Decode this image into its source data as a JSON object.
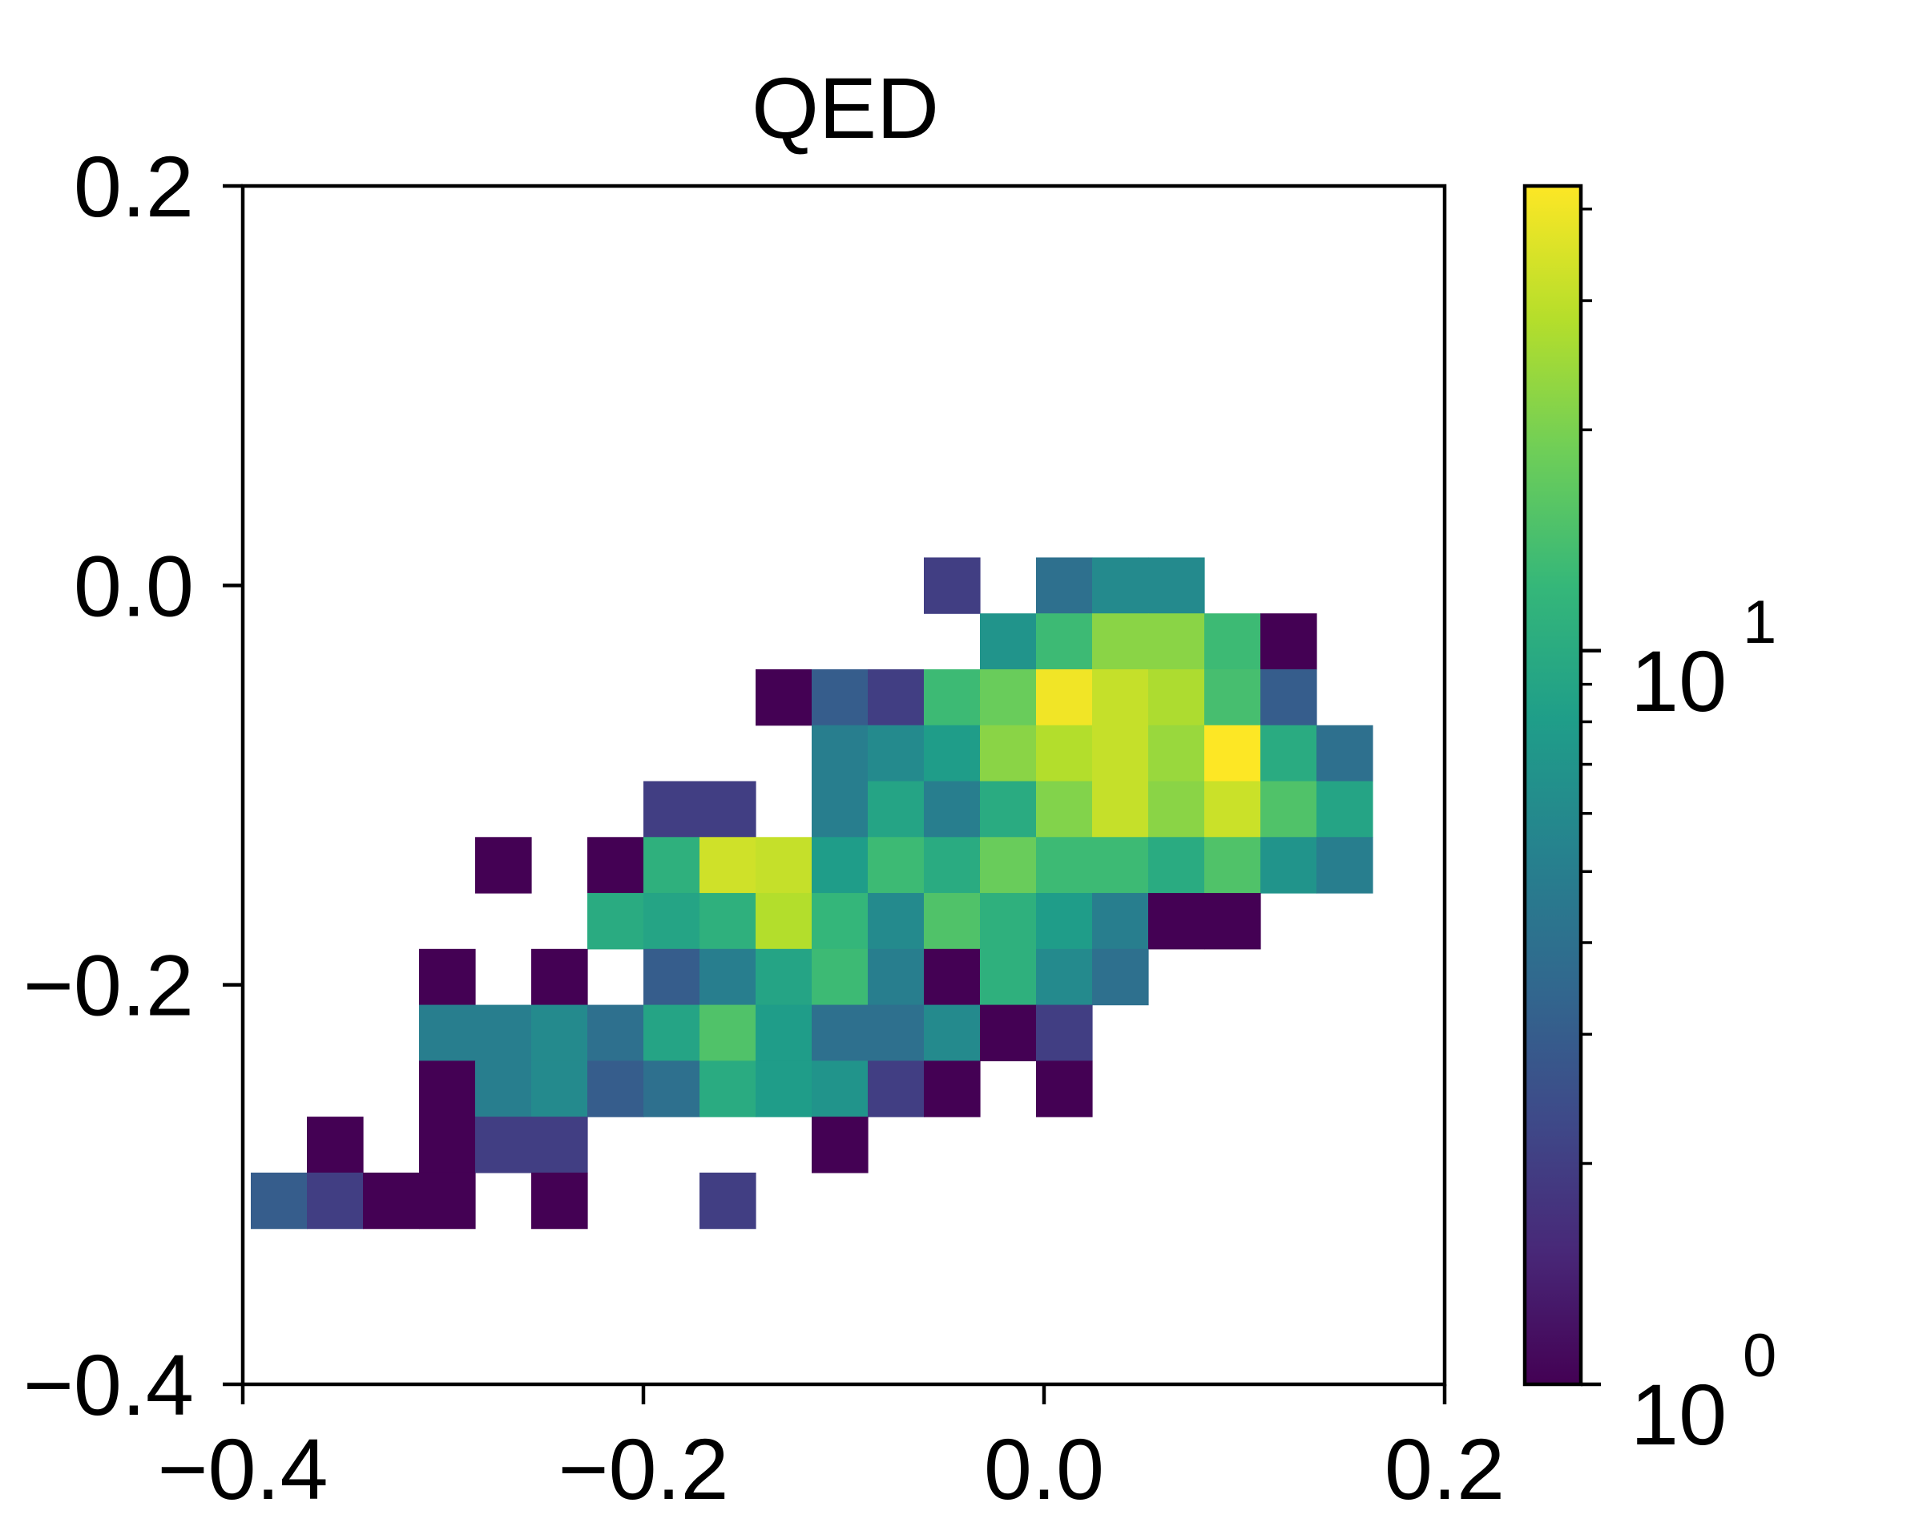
{
  "chart_data": {
    "type": "heatmap",
    "title": "QED",
    "xlabel": "",
    "ylabel": "",
    "xlim": [
      -0.4,
      0.2
    ],
    "ylim": [
      -0.4,
      0.2
    ],
    "x_ticks": [
      -0.4,
      -0.2,
      0.0,
      0.2
    ],
    "x_tick_labels": [
      "−0.4",
      "−0.2",
      "0.0",
      "0.2"
    ],
    "y_ticks": [
      0.2,
      0.0,
      -0.2,
      -0.4
    ],
    "y_tick_labels": [
      "0.2",
      "0.0",
      "−0.2",
      "−0.4"
    ],
    "bin_size": 0.028,
    "x_start": -0.396,
    "y_top": 0.014,
    "grid": false,
    "colorscale": "viridis",
    "colorbar": {
      "scale": "log",
      "min": 1,
      "max": 43,
      "major_ticks": [
        1,
        10
      ],
      "major_labels": [
        {
          "base": "10",
          "exp": "0"
        },
        {
          "base": "10",
          "exp": "1"
        }
      ],
      "minor_ticks": [
        2,
        3,
        4,
        5,
        6,
        7,
        8,
        9,
        20,
        30,
        40
      ]
    },
    "counts": [
      [
        0,
        0,
        0,
        0,
        0,
        0,
        0,
        0,
        0,
        0,
        0,
        0,
        2,
        0,
        4,
        6,
        6,
        0,
        0,
        0,
        0
      ],
      [
        0,
        0,
        0,
        0,
        0,
        0,
        0,
        0,
        0,
        0,
        0,
        0,
        0,
        7,
        13,
        22,
        22,
        13,
        1,
        0,
        0
      ],
      [
        0,
        0,
        0,
        0,
        0,
        0,
        0,
        0,
        0,
        1,
        3,
        2,
        13,
        18,
        40,
        31,
        27,
        14,
        3,
        0,
        0
      ],
      [
        0,
        0,
        0,
        0,
        0,
        0,
        0,
        0,
        0,
        0,
        5,
        6,
        8,
        22,
        28,
        31,
        24,
        43,
        10,
        4,
        0
      ],
      [
        0,
        0,
        0,
        0,
        0,
        0,
        0,
        2,
        2,
        0,
        5,
        9,
        5,
        10,
        21,
        31,
        22,
        32,
        15,
        9,
        0
      ],
      [
        0,
        0,
        0,
        0,
        1,
        0,
        1,
        11,
        33,
        31,
        8,
        13,
        10,
        18,
        13,
        13,
        10,
        15,
        7,
        5,
        0
      ],
      [
        0,
        0,
        0,
        0,
        0,
        0,
        10,
        9,
        11,
        28,
        12,
        6,
        15,
        11,
        8,
        5,
        1,
        1,
        0,
        0,
        0
      ],
      [
        0,
        0,
        0,
        1,
        0,
        1,
        0,
        3,
        5,
        9,
        13,
        5,
        1,
        11,
        6,
        4,
        0,
        0,
        0,
        0,
        0
      ],
      [
        0,
        0,
        0,
        5,
        5,
        6,
        4,
        9,
        15,
        8,
        4,
        4,
        6,
        1,
        2,
        0,
        0,
        0,
        0,
        0,
        0
      ],
      [
        0,
        0,
        0,
        1,
        5,
        6,
        3,
        4,
        10,
        8,
        7,
        2,
        1,
        0,
        1,
        0,
        0,
        0,
        0,
        0,
        0
      ],
      [
        0,
        1,
        0,
        1,
        2,
        2,
        0,
        0,
        0,
        0,
        1,
        0,
        0,
        0,
        0,
        0,
        0,
        0,
        0,
        0,
        0
      ],
      [
        3,
        2,
        1,
        1,
        0,
        1,
        0,
        0,
        2,
        0,
        0,
        0,
        0,
        0,
        0,
        0,
        0,
        0,
        0,
        0,
        0
      ]
    ]
  }
}
